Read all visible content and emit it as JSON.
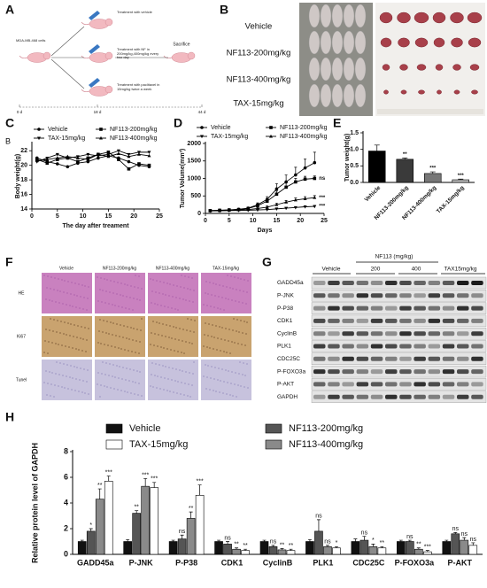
{
  "panel_labels": [
    "A",
    "B",
    "C",
    "D",
    "E",
    "F",
    "G",
    "H"
  ],
  "schematic": {
    "cells": "MDA-MB-468 cells",
    "steps": [
      "Treatment with vehicle",
      "Treatment with NF in 200mg/kg,400mg/kg every two day",
      "Treatment with paclitaxel in 15mg/kg twice a week"
    ],
    "end": "Sacrifice",
    "timeline": [
      "0 d",
      "18 d",
      "44 d"
    ]
  },
  "tumor_photo": {
    "groups": [
      "Vehicle",
      "NF113-200mg/kg",
      "NF113-400mg/kg",
      "TAX-15mg/kg"
    ]
  },
  "histology": {
    "columns": [
      "Vehicle",
      "NF113-200mg/kg",
      "NF113-400mg/kg",
      "TAX-15mg/kg"
    ],
    "rows": [
      "HE",
      "Ki67",
      "Tunel"
    ]
  },
  "western_blot": {
    "treatment": "NF113  (mg/kg)",
    "groups": [
      "Vehicle",
      "200",
      "400",
      "TAX15mg/kg"
    ],
    "proteins": [
      "GADD45a",
      "P-JNK",
      "P-P38",
      "CDK1",
      "CyclinB",
      "PLK1",
      "CDC25C",
      "P-FOXO3a",
      "P-AKT",
      "GAPDH"
    ]
  },
  "chart_data": [
    {
      "type": "line",
      "corner_label": "B",
      "xlabel": "The day after treament",
      "ylabel": "Body weight(g)",
      "xlim": [
        0,
        25
      ],
      "xticks": [
        0,
        5,
        10,
        15,
        20,
        25
      ],
      "ylim": [
        14,
        23
      ],
      "yticks": [
        14,
        16,
        18,
        20,
        22
      ],
      "x": [
        1,
        3,
        5,
        7,
        9,
        11,
        13,
        15,
        17,
        19,
        21,
        23
      ],
      "series": [
        {
          "name": "Vehicle",
          "color": "#000000",
          "marker": "circle",
          "values": [
            21,
            20.5,
            20.2,
            19.8,
            20.3,
            20.5,
            21,
            21.3,
            21,
            20.5,
            20,
            19.8
          ]
        },
        {
          "name": "NF113-200mg/kg",
          "color": "#000000",
          "marker": "square",
          "values": [
            20.8,
            20.3,
            20.8,
            21,
            20.5,
            21,
            21.5,
            21.8,
            20.8,
            19.5,
            20.2,
            20
          ]
        },
        {
          "name": "TAX-15mg/kg",
          "color": "#000000",
          "marker": "triangle-down",
          "values": [
            20.5,
            21,
            21.5,
            21,
            21.2,
            21.5,
            21.3,
            21.5,
            22,
            21.5,
            21.8,
            21.8
          ]
        },
        {
          "name": "NF113-400mg/kg",
          "color": "#000000",
          "marker": "triangle-up",
          "values": [
            20.6,
            20.8,
            21,
            21.2,
            21,
            20.8,
            21.5,
            21.2,
            21.6,
            21.2,
            21.5,
            21.3
          ]
        }
      ]
    },
    {
      "type": "line",
      "xlabel": "Days",
      "ylabel": "Tumor Volume(mm³)",
      "xlim": [
        0,
        25
      ],
      "xticks": [
        0,
        5,
        10,
        15,
        20,
        25
      ],
      "ylim": [
        0,
        2000
      ],
      "yticks": [
        0,
        500,
        1000,
        1500,
        2000
      ],
      "x": [
        1,
        3,
        5,
        7,
        9,
        11,
        13,
        15,
        17,
        19,
        21,
        23
      ],
      "series": [
        {
          "name": "Vehicle",
          "color": "#000000",
          "marker": "circle",
          "values": [
            80,
            90,
            100,
            120,
            150,
            250,
            400,
            700,
            900,
            1100,
            1300,
            1450
          ],
          "errors": [
            10,
            10,
            15,
            20,
            30,
            50,
            80,
            150,
            200,
            220,
            250,
            300
          ]
        },
        {
          "name": "NF113-200mg/kg",
          "color": "#000000",
          "marker": "square",
          "values": [
            80,
            90,
            100,
            110,
            140,
            220,
            350,
            550,
            750,
            900,
            980,
            1000
          ],
          "errors": [
            10,
            10,
            10,
            15,
            20,
            40,
            60,
            90,
            120,
            100,
            80,
            70
          ],
          "end_label": "ns"
        },
        {
          "name": "TAX-15mg/kg",
          "color": "#000000",
          "marker": "triangle-down",
          "values": [
            70,
            75,
            80,
            85,
            90,
            100,
            110,
            130,
            150,
            170,
            190,
            200
          ],
          "errors": [
            5,
            5,
            5,
            5,
            5,
            10,
            10,
            15,
            20,
            20,
            25,
            30
          ],
          "end_label": "***"
        },
        {
          "name": "NF113-400mg/kg",
          "color": "#000000",
          "marker": "triangle-up",
          "values": [
            70,
            80,
            90,
            100,
            110,
            140,
            180,
            250,
            320,
            380,
            420,
            450
          ],
          "errors": [
            5,
            5,
            5,
            10,
            10,
            20,
            30,
            40,
            50,
            60,
            60,
            60
          ],
          "end_label": "***"
        }
      ]
    },
    {
      "type": "bar",
      "ylabel": "Tumor weight(g)",
      "ylim": [
        0,
        1.5
      ],
      "yticks": [
        {
          "value": 0,
          "label": "0.0"
        },
        0.5,
        {
          "value": 1,
          "label": "1.0"
        },
        1.5
      ],
      "categories": [
        "Vehicle",
        "NF113-200mg/kg",
        "NF113-400mg/kg",
        "TAX-15mg/kg"
      ],
      "values": [
        0.95,
        0.7,
        0.27,
        0.08
      ],
      "errors": [
        0.18,
        0.04,
        0.05,
        0.02
      ],
      "colors": [
        "#000000",
        "#3a3a3a",
        "#777777",
        "#bbbbbb"
      ],
      "significance": [
        null,
        "**",
        "***",
        "***"
      ]
    },
    {
      "type": "grouped_bar",
      "ylabel": "Relative protein level of GAPDH",
      "ylim": [
        0,
        8
      ],
      "yticks": [
        0,
        2,
        4,
        6,
        8
      ],
      "categories": [
        "GADD45a",
        "P-JNK",
        "P-P38",
        "CDK1",
        "CyclinB",
        "PLK1",
        "CDC25C",
        "P-FOXO3a",
        "P-AKT"
      ],
      "series": [
        {
          "name": "Vehicle",
          "color": "#111111",
          "values": [
            1,
            1,
            1,
            1,
            1,
            1,
            1,
            1,
            1
          ],
          "errors": [
            0.1,
            0.15,
            0.1,
            0.1,
            0.1,
            0.15,
            0.2,
            0.1,
            0.1
          ]
        },
        {
          "name": "NF113-200mg/kg",
          "color": "#555555",
          "values": [
            1.8,
            3.2,
            1.2,
            0.8,
            0.6,
            1.8,
            1.1,
            1.0,
            1.6
          ],
          "errors": [
            0.2,
            0.2,
            0.3,
            0.2,
            0.1,
            0.9,
            0.3,
            0.1,
            0.1
          ],
          "significance": [
            "*",
            "**",
            "ns",
            "ns",
            "ns",
            "ns",
            "ns",
            "ns",
            "ns"
          ]
        },
        {
          "name": "NF113-400mg/kg",
          "color": "#8a8a8a",
          "values": [
            4.3,
            5.3,
            2.8,
            0.4,
            0.35,
            0.6,
            0.6,
            0.4,
            1.1
          ],
          "errors": [
            0.8,
            0.6,
            0.5,
            0.1,
            0.1,
            0.1,
            0.2,
            0.1,
            0.2
          ],
          "significance": [
            "**",
            "***",
            "**",
            "**",
            "**",
            "ns",
            "*",
            "**",
            "ns"
          ]
        },
        {
          "name": "TAX-15mg/kg",
          "color": "#ffffff",
          "values": [
            5.7,
            5.2,
            4.6,
            0.3,
            0.3,
            0.5,
            0.5,
            0.2,
            0.7
          ],
          "errors": [
            0.4,
            0.4,
            0.8,
            0.1,
            0.1,
            0.1,
            0.1,
            0.1,
            0.2
          ],
          "significance": [
            "***",
            "***",
            "***",
            "**",
            "**",
            "*",
            "**",
            "***",
            "ns"
          ]
        }
      ]
    }
  ]
}
